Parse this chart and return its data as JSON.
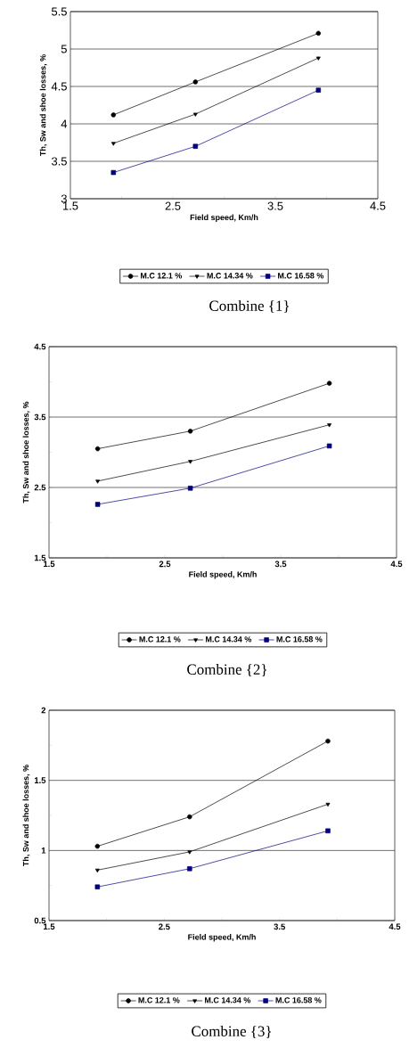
{
  "chart_data": [
    {
      "type": "line",
      "title": "Combine {1}",
      "xlabel": "Field speed, Km/h",
      "ylabel": "Th, Sw and shoe losses, %",
      "x": [
        1.92,
        2.72,
        3.92
      ],
      "series": [
        {
          "name": "M.C 12.1 %",
          "color": "#000000",
          "marker": "circle",
          "values": [
            4.12,
            4.56,
            5.21
          ]
        },
        {
          "name": "M.C 14.34 %",
          "color": "#000000",
          "marker": "triangle",
          "values": [
            3.74,
            4.13,
            4.88
          ]
        },
        {
          "name": "M.C 16.58 %",
          "color": "#000080",
          "marker": "square",
          "values": [
            3.35,
            3.7,
            4.45
          ]
        }
      ],
      "xlim": [
        1.5,
        4.5
      ],
      "ylim": [
        3,
        5.5
      ],
      "xticks": [
        1.5,
        {
          "value": 2,
          "label": null
        },
        2.5,
        {
          "value": 3,
          "label": null
        },
        3.5,
        {
          "value": 4,
          "label": null
        },
        4.5
      ],
      "yticks": [
        3,
        3.5,
        4,
        4.5,
        5,
        5.5
      ],
      "grid": "y",
      "legend": "bottom"
    },
    {
      "type": "line",
      "title": "Combine {2}",
      "xlabel": "Field speed, Km/h",
      "ylabel": "Th, Sw and shoe losses, %",
      "x": [
        1.92,
        2.72,
        3.92
      ],
      "series": [
        {
          "name": "M.C 12.1 %",
          "color": "#000000",
          "marker": "circle",
          "values": [
            3.05,
            3.3,
            3.98
          ]
        },
        {
          "name": "M.C 14.34 %",
          "color": "#000000",
          "marker": "triangle",
          "values": [
            2.59,
            2.87,
            3.39
          ]
        },
        {
          "name": "M.C 16.58 %",
          "color": "#000080",
          "marker": "square",
          "values": [
            2.26,
            2.49,
            3.09
          ]
        }
      ],
      "xlim": [
        1.5,
        4.5
      ],
      "ylim": [
        1.5,
        4.5
      ],
      "xticks": [
        1.5,
        {
          "value": 2,
          "label": null
        },
        2.5,
        {
          "value": 3,
          "label": null
        },
        3.5,
        {
          "value": 4,
          "label": null
        },
        4.5
      ],
      "yticks": [
        1.5,
        {
          "value": 2,
          "label": null
        },
        2.5,
        {
          "value": 3,
          "label": null
        },
        3.5,
        {
          "value": 4,
          "label": null
        },
        4.5
      ],
      "grid": "y",
      "legend": "bottom"
    },
    {
      "type": "line",
      "title": "Combine {3}",
      "xlabel": "Field speed, Km/h",
      "ylabel": "Th, Sw and shoe losses, %",
      "x": [
        1.92,
        2.72,
        3.92
      ],
      "series": [
        {
          "name": "M.C 12.1 %",
          "color": "#000000",
          "marker": "circle",
          "values": [
            1.03,
            1.24,
            1.78
          ]
        },
        {
          "name": "M.C 14.34 %",
          "color": "#000000",
          "marker": "triangle",
          "values": [
            0.86,
            0.99,
            1.33
          ]
        },
        {
          "name": "M.C 16.58 %",
          "color": "#000080",
          "marker": "square",
          "values": [
            0.74,
            0.87,
            1.14
          ]
        }
      ],
      "xlim": [
        1.5,
        4.5
      ],
      "ylim": [
        0.5,
        2
      ],
      "xticks": [
        1.5,
        {
          "value": 2,
          "label": null
        },
        2.5,
        {
          "value": 3,
          "label": null
        },
        3.5,
        {
          "value": 4,
          "label": null
        },
        4.5
      ],
      "yticks": [
        0.5,
        {
          "value": 0.75,
          "label": null
        },
        1,
        {
          "value": 1.25,
          "label": null
        },
        1.5,
        {
          "value": 1.75,
          "label": null
        },
        2
      ],
      "grid": "y",
      "legend": "bottom"
    }
  ]
}
